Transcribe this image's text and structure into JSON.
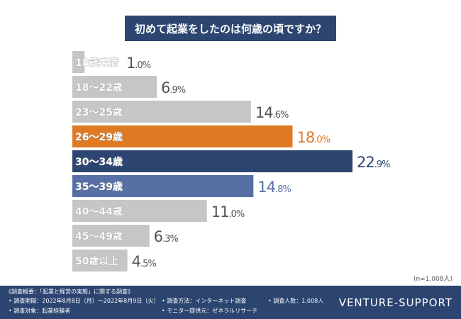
{
  "chart_data": {
    "type": "bar",
    "orientation": "horizontal",
    "title": "初めて起業をしたのは何歳の頃ですか？",
    "categories": [
      "18歳未満",
      "18〜22歳",
      "23〜25歳",
      "26〜29歳",
      "30〜34歳",
      "35〜39歳",
      "40〜44歳",
      "45〜49歳",
      "50歳以上"
    ],
    "values": [
      1.0,
      6.9,
      14.6,
      18.0,
      22.9,
      14.8,
      11.0,
      6.3,
      4.5
    ],
    "unit": "%",
    "colors": [
      "#c6c6c6",
      "#c6c6c6",
      "#c6c6c6",
      "#e07a22",
      "#2d4571",
      "#5670a6",
      "#c6c6c6",
      "#c6c6c6",
      "#c6c6c6"
    ],
    "value_colors": [
      "#555555",
      "#555555",
      "#555555",
      "#e07a22",
      "#2d4571",
      "#5670a6",
      "#555555",
      "#555555",
      "#555555"
    ],
    "xlim": [
      0,
      23
    ],
    "grid": false,
    "note": "(n=1,008人)"
  },
  "footer": {
    "summary": "《調査概要：「起業と経営の実態」に関する調査》",
    "period": "• 調査期間：2022年8月8日（月）〜2022年8月9日（火）",
    "target": "• 調査対象：起業経験者",
    "method": "• 調査方法：インターネット調査",
    "provider": "• モニター提供元：ゼネラルリサーチ",
    "count": "• 調査人数：1,008人",
    "brand": "VENTURE-SUPPORT"
  }
}
